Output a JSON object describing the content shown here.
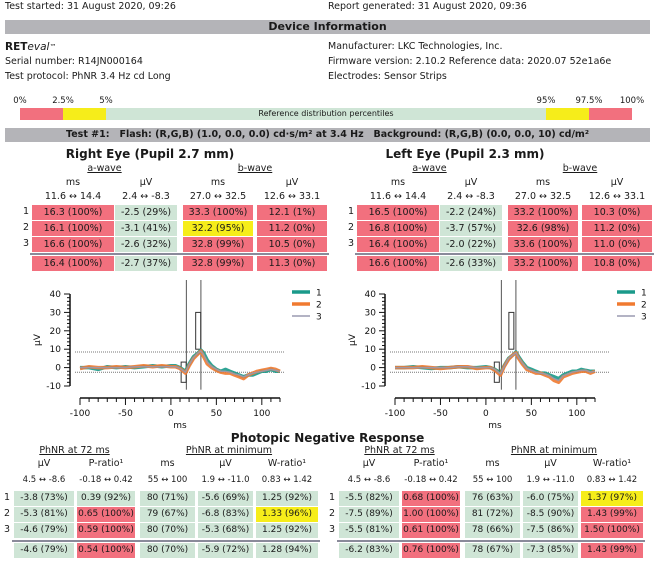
{
  "header": {
    "test_started": "Test started: 31 August 2020, 09:26",
    "report_generated": "Report generated: 31 August 2020, 09:36",
    "section_title": "Device Information"
  },
  "device": {
    "name_bold": "RET",
    "name_italic": "eval",
    "name_tm": "™",
    "serial": "Serial number: R14JN000164",
    "protocol": "Test protocol: PhNR 3.4 Hz cd Long",
    "manufacturer": "Manufacturer: LKC Technologies, Inc.",
    "firmware": "Firmware version: 2.10.2 Reference data: 2020.07 52e1a6e",
    "electrodes": "Electrodes: Sensor Strips"
  },
  "reference_bar": {
    "labels": [
      "0%",
      "2.5%",
      "5%",
      "95%",
      "97.5%",
      "100%"
    ],
    "text": "Reference distribution percentiles",
    "colors": {
      "red": "#f2707e",
      "yellow": "#f6ed1a",
      "green": "#cfe5d6"
    }
  },
  "test": {
    "title": "Test #1:   Flash: (R,G,B) (1.0, 0.0, 0.0) cd·s/m² at 3.4 Hz   Background: (R,G,B) (0.0, 0.0, 10) cd/m²"
  },
  "eyes": [
    {
      "title": "Right Eye (Pupil 2.7 mm)",
      "a_wave": "a-wave",
      "b_wave": "b-wave",
      "col_headers": [
        "ms",
        "µV",
        "ms",
        "µV"
      ],
      "ranges": [
        "11.6 ↔ 14.4",
        "2.4 ↔ -8.3",
        "27.0 ↔ 32.5",
        "12.6 ↔ 33.1"
      ],
      "row_labels": [
        "1",
        "2",
        "3",
        ""
      ],
      "rows": [
        [
          {
            "v": "16.3 (100%)",
            "c": "red"
          },
          {
            "v": "-2.5 (29%)",
            "c": "green"
          },
          {
            "v": "33.3 (100%)",
            "c": "red"
          },
          {
            "v": "12.1 (1%)",
            "c": "red"
          }
        ],
        [
          {
            "v": "16.1 (100%)",
            "c": "red"
          },
          {
            "v": "-3.1 (41%)",
            "c": "green"
          },
          {
            "v": "32.2 (95%)",
            "c": "yellow"
          },
          {
            "v": "11.2 (0%)",
            "c": "red"
          }
        ],
        [
          {
            "v": "16.6 (100%)",
            "c": "red"
          },
          {
            "v": "-2.6 (32%)",
            "c": "green"
          },
          {
            "v": "32.8 (99%)",
            "c": "red"
          },
          {
            "v": "10.5 (0%)",
            "c": "red"
          }
        ],
        [
          {
            "v": "16.4 (100%)",
            "c": "red"
          },
          {
            "v": "-2.7 (37%)",
            "c": "green"
          },
          {
            "v": "32.8 (99%)",
            "c": "red"
          },
          {
            "v": "11.3 (0%)",
            "c": "red"
          }
        ]
      ]
    },
    {
      "title": "Left Eye (Pupil 2.3 mm)",
      "a_wave": "a-wave",
      "b_wave": "b-wave",
      "col_headers": [
        "ms",
        "µV",
        "ms",
        "µV"
      ],
      "ranges": [
        "11.6 ↔ 14.4",
        "2.4 ↔ -8.3",
        "27.0 ↔ 32.5",
        "12.6 ↔ 33.1"
      ],
      "row_labels": [
        "1",
        "2",
        "3",
        ""
      ],
      "rows": [
        [
          {
            "v": "16.5 (100%)",
            "c": "red"
          },
          {
            "v": "-2.2 (24%)",
            "c": "green"
          },
          {
            "v": "33.2 (100%)",
            "c": "red"
          },
          {
            "v": "10.3 (0%)",
            "c": "red"
          }
        ],
        [
          {
            "v": "16.8 (100%)",
            "c": "red"
          },
          {
            "v": "-3.7 (57%)",
            "c": "green"
          },
          {
            "v": "32.6 (98%)",
            "c": "red"
          },
          {
            "v": "11.2 (0%)",
            "c": "red"
          }
        ],
        [
          {
            "v": "16.4 (100%)",
            "c": "red"
          },
          {
            "v": "-2.0 (22%)",
            "c": "green"
          },
          {
            "v": "33.6 (100%)",
            "c": "red"
          },
          {
            "v": "11.0 (0%)",
            "c": "red"
          }
        ],
        [
          {
            "v": "16.6 (100%)",
            "c": "red"
          },
          {
            "v": "-2.6 (33%)",
            "c": "green"
          },
          {
            "v": "33.2 (100%)",
            "c": "red"
          },
          {
            "v": "10.8 (0%)",
            "c": "red"
          }
        ]
      ]
    }
  ],
  "chart_data": [
    {
      "type": "line",
      "title": "Right Eye waveform",
      "xlabel": "ms",
      "ylabel": "µV",
      "xlim": [
        -100,
        120
      ],
      "ylim": [
        -10,
        40
      ],
      "xticks": [
        -100,
        -50,
        0,
        50,
        100
      ],
      "yticks": [
        -10,
        0,
        10,
        20,
        30,
        40
      ],
      "legend": [
        "1",
        "2",
        "3"
      ],
      "legend_position": "top-right",
      "series_colors": [
        "#1a9a8a",
        "#f07a30",
        "#9a9ab0"
      ],
      "hlines": [
        8.5,
        -2.5
      ],
      "vlines": [
        17,
        33
      ],
      "ref_boxes": [
        {
          "x": 14,
          "y0": -8,
          "y1": 3
        },
        {
          "x": 30,
          "y0": 10,
          "y1": 30
        }
      ],
      "x": [
        -100,
        -90,
        -80,
        -70,
        -60,
        -50,
        -40,
        -30,
        -20,
        -10,
        0,
        5,
        10,
        16,
        20,
        25,
        30,
        33,
        36,
        40,
        45,
        50,
        55,
        60,
        65,
        70,
        75,
        80,
        85,
        90,
        95,
        100,
        105,
        110,
        115,
        120
      ],
      "series": [
        {
          "name": "1",
          "values": [
            0,
            0,
            -1,
            0.5,
            0,
            0.5,
            0,
            0.5,
            1,
            0.5,
            1,
            1,
            0,
            -2,
            2,
            6,
            8,
            9.5,
            8,
            4,
            1,
            -1,
            -2,
            -1,
            -2,
            -3,
            -4,
            -5,
            -4,
            -4,
            -3,
            -2,
            -2,
            -1,
            -2,
            -2
          ]
        },
        {
          "name": "2",
          "values": [
            -0.5,
            0.5,
            0,
            0,
            0.5,
            0,
            0.5,
            1,
            0.5,
            1,
            0.5,
            0.5,
            -0.5,
            -3,
            1,
            5,
            7.5,
            9,
            6,
            2,
            0,
            -1.5,
            -2.5,
            -3,
            -3,
            -4,
            -5,
            -6,
            -4,
            -3,
            -2,
            -1.5,
            -1,
            -0.5,
            -1,
            -2
          ]
        },
        {
          "name": "3",
          "values": [
            0,
            0,
            0,
            0,
            0,
            0,
            0.5,
            0.5,
            0.5,
            0.5,
            0.5,
            0.5,
            -0.5,
            -2.5,
            1.5,
            5.5,
            8,
            9,
            7,
            3,
            0.5,
            -1,
            -2,
            -2,
            -2.5,
            -3.5,
            -4,
            -5,
            -4,
            -3,
            -2.5,
            -2,
            -1.5,
            -1,
            -1.5,
            -2
          ]
        }
      ]
    },
    {
      "type": "line",
      "title": "Left Eye waveform",
      "xlabel": "ms",
      "ylabel": "µV",
      "xlim": [
        -100,
        120
      ],
      "ylim": [
        -10,
        40
      ],
      "xticks": [
        -100,
        -50,
        0,
        50,
        100
      ],
      "yticks": [
        -10,
        0,
        10,
        20,
        30,
        40
      ],
      "legend": [
        "1",
        "2",
        "3"
      ],
      "legend_position": "top-right",
      "series_colors": [
        "#1a9a8a",
        "#f07a30",
        "#9a9ab0"
      ],
      "hlines": [
        8.5,
        -2.5
      ],
      "vlines": [
        17,
        33
      ],
      "ref_boxes": [
        {
          "x": 12,
          "y0": -8,
          "y1": 3
        },
        {
          "x": 28,
          "y0": 10,
          "y1": 30
        }
      ],
      "x": [
        -100,
        -90,
        -80,
        -70,
        -60,
        -50,
        -40,
        -30,
        -20,
        -10,
        0,
        5,
        10,
        16,
        20,
        25,
        30,
        33,
        36,
        40,
        45,
        50,
        55,
        60,
        65,
        70,
        75,
        80,
        85,
        90,
        95,
        100,
        105,
        110,
        115,
        120
      ],
      "series": [
        {
          "name": "1",
          "values": [
            0,
            0,
            0.5,
            0,
            -0.5,
            0,
            0,
            0.5,
            0,
            0,
            0.5,
            0,
            -1,
            -3,
            1,
            5,
            7,
            8.5,
            6,
            3,
            0,
            -1,
            -2,
            -3,
            -3,
            -4,
            -5,
            -6,
            -4,
            -3,
            -2,
            -2,
            -1,
            -1.5,
            -2,
            -2
          ]
        },
        {
          "name": "2",
          "values": [
            0,
            0,
            0,
            0.5,
            0,
            -0.5,
            0,
            0.5,
            0.5,
            -0.5,
            0,
            0,
            -1.5,
            -4,
            0.5,
            4.5,
            7,
            8,
            5,
            2,
            -1,
            -2,
            -3,
            -3,
            -4,
            -5,
            -7,
            -8,
            -5,
            -4,
            -3,
            -2.5,
            -2,
            -2,
            -3,
            -2
          ]
        },
        {
          "name": "3",
          "values": [
            0,
            0,
            0,
            0,
            0,
            0,
            0,
            0.5,
            0.5,
            0,
            0,
            0,
            -1,
            -3.5,
            0.5,
            5,
            7,
            8,
            5.5,
            2.5,
            -0.5,
            -1.5,
            -2.5,
            -3,
            -3.5,
            -4.5,
            -6,
            -7,
            -4.5,
            -3.5,
            -2.5,
            -2,
            -1.5,
            -1.5,
            -2.5,
            -2
          ]
        }
      ]
    }
  ],
  "phnr": {
    "title": "Photopic Negative Response",
    "eyes": [
      {
        "group1": "PhNR at 72 ms",
        "group2": "PhNR at minimum",
        "col_headers": [
          "µV",
          "P-ratio¹",
          "ms",
          "µV",
          "W-ratio¹"
        ],
        "ranges": [
          "4.5 ↔ -8.6",
          "-0.18 ↔ 0.42",
          "55 ↔ 100",
          "1.9 ↔ -11.0",
          "0.83 ↔ 1.42"
        ],
        "row_labels": [
          "1",
          "2",
          "3",
          ""
        ],
        "rows": [
          [
            {
              "v": "-3.8 (73%)",
              "c": "green"
            },
            {
              "v": "0.39 (92%)",
              "c": "green"
            },
            {
              "v": "80 (71%)",
              "c": "green"
            },
            {
              "v": "-5.6 (69%)",
              "c": "green"
            },
            {
              "v": "1.25 (92%)",
              "c": "green"
            }
          ],
          [
            {
              "v": "-5.3 (81%)",
              "c": "green"
            },
            {
              "v": "0.65 (100%)",
              "c": "red"
            },
            {
              "v": "79 (67%)",
              "c": "green"
            },
            {
              "v": "-6.8 (83%)",
              "c": "green"
            },
            {
              "v": "1.33 (96%)",
              "c": "yellow"
            }
          ],
          [
            {
              "v": "-4.6 (79%)",
              "c": "green"
            },
            {
              "v": "0.59 (100%)",
              "c": "red"
            },
            {
              "v": "80 (70%)",
              "c": "green"
            },
            {
              "v": "-5.3 (68%)",
              "c": "green"
            },
            {
              "v": "1.25 (92%)",
              "c": "green"
            }
          ],
          [
            {
              "v": "-4.6 (79%)",
              "c": "green"
            },
            {
              "v": "0.54 (100%)",
              "c": "red"
            },
            {
              "v": "80 (70%)",
              "c": "green"
            },
            {
              "v": "-5.9 (72%)",
              "c": "green"
            },
            {
              "v": "1.28 (94%)",
              "c": "green"
            }
          ]
        ]
      },
      {
        "group1": "PhNR at 72 ms",
        "group2": "PhNR at minimum",
        "col_headers": [
          "µV",
          "P-ratio¹",
          "ms",
          "µV",
          "W-ratio¹"
        ],
        "ranges": [
          "4.5 ↔ -8.6",
          "-0.18 ↔ 0.42",
          "55 ↔ 100",
          "1.9 ↔ -11.0",
          "0.83 ↔ 1.42"
        ],
        "row_labels": [
          "1",
          "2",
          "3",
          ""
        ],
        "rows": [
          [
            {
              "v": "-5.5 (82%)",
              "c": "green"
            },
            {
              "v": "0.68 (100%)",
              "c": "red"
            },
            {
              "v": "76 (63%)",
              "c": "green"
            },
            {
              "v": "-6.0 (75%)",
              "c": "green"
            },
            {
              "v": "1.37 (97%)",
              "c": "yellow"
            }
          ],
          [
            {
              "v": "-7.5 (89%)",
              "c": "green"
            },
            {
              "v": "1.00 (100%)",
              "c": "red"
            },
            {
              "v": "81 (72%)",
              "c": "green"
            },
            {
              "v": "-8.5 (90%)",
              "c": "green"
            },
            {
              "v": "1.43 (99%)",
              "c": "red"
            }
          ],
          [
            {
              "v": "-5.5 (81%)",
              "c": "green"
            },
            {
              "v": "0.61 (100%)",
              "c": "red"
            },
            {
              "v": "78 (66%)",
              "c": "green"
            },
            {
              "v": "-7.5 (86%)",
              "c": "green"
            },
            {
              "v": "1.50 (100%)",
              "c": "red"
            }
          ],
          [
            {
              "v": "-6.2 (83%)",
              "c": "green"
            },
            {
              "v": "0.76 (100%)",
              "c": "red"
            },
            {
              "v": "78 (67%)",
              "c": "green"
            },
            {
              "v": "-7.3 (85%)",
              "c": "green"
            },
            {
              "v": "1.43 (99%)",
              "c": "red"
            }
          ]
        ]
      }
    ]
  }
}
